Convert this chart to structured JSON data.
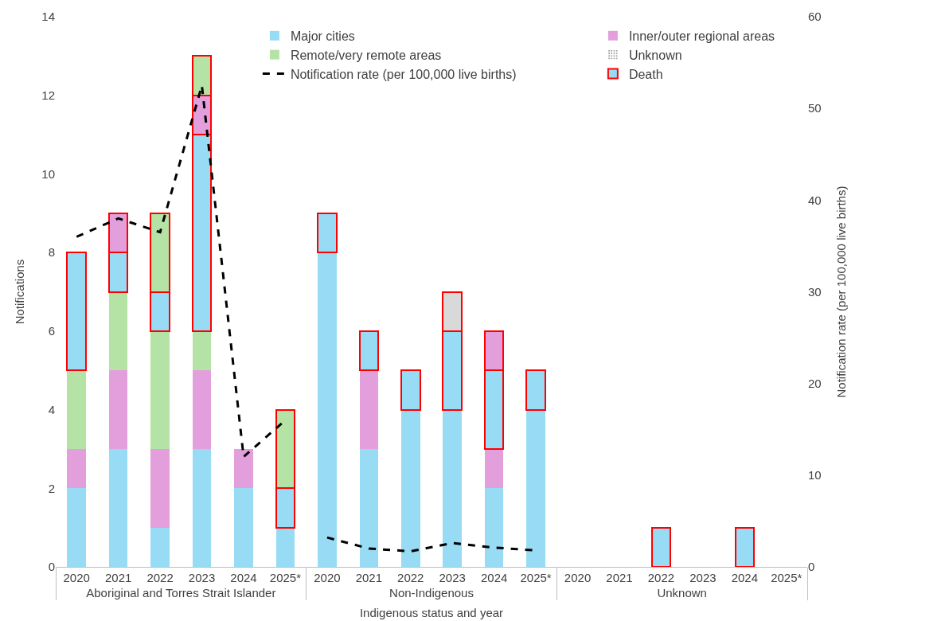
{
  "chart_data": {
    "type": "bar",
    "stacked": true,
    "xlabel": "Indigenous status and year",
    "ylabel": "Notifications",
    "y2label": "Notification rate (per 100,000 live births)",
    "categories": [
      "2020",
      "2021",
      "2022",
      "2023",
      "2024",
      "2025*",
      "2020",
      "2021",
      "2022",
      "2023",
      "2024",
      "2025*",
      "2020",
      "2021",
      "2022",
      "2023",
      "2024",
      "2025*"
    ],
    "annotations": [
      "Aboriginal and Torres Strait Islander",
      "Non-Indigenous",
      "Unknown"
    ],
    "series": [
      {
        "name": "Major cities",
        "color": "#97dbf5",
        "values": [
          2,
          3,
          1,
          3,
          2,
          1,
          8,
          3,
          4,
          4,
          2,
          4,
          0,
          0,
          0,
          0,
          0,
          0
        ]
      },
      {
        "name": "Inner/outer regional areas",
        "color": "#e39fdc",
        "values": [
          1,
          2,
          2,
          2,
          1,
          0,
          0,
          2,
          0,
          0,
          1,
          0,
          0,
          0,
          0,
          0,
          0,
          0
        ]
      },
      {
        "name": "Remote/very remote areas",
        "color": "#b4e3a5",
        "values": [
          2,
          2,
          3,
          1,
          0,
          0,
          0,
          0,
          0,
          0,
          0,
          0,
          0,
          0,
          0,
          0,
          0,
          0
        ]
      },
      {
        "name": "Unknown",
        "color": "#d9d9d9",
        "values": [
          0,
          0,
          0,
          0,
          0,
          0,
          0,
          0,
          0,
          0,
          0,
          0,
          0,
          0,
          0,
          0,
          0,
          0
        ]
      },
      {
        "name": "Notification rate (per 100,000 live births)",
        "type": "line",
        "axis": "y2",
        "color": "#000000",
        "line_style": "dashed",
        "values": [
          36,
          38,
          36.5,
          52.5,
          12,
          16,
          null,
          null,
          null,
          null,
          null,
          null,
          null,
          null,
          null,
          null,
          null,
          null
        ]
      },
      {
        "name": "Death",
        "color": "#ff0000",
        "colors": [
          "#97dbf5",
          "#97dbf5",
          "#97dbf5",
          "#97dbf5",
          "#97dbf5",
          "#97dbf5",
          "#97dbf5",
          "#97dbf5",
          "#97dbf5",
          "#97dbf5",
          "#97dbf5",
          "#97dbf5",
          "#97dbf5",
          "#97dbf5",
          "#97dbf5",
          "#97dbf5",
          "#97dbf5",
          "#97dbf5"
        ],
        "values": [
          3,
          1,
          1,
          5,
          null,
          1,
          1,
          1,
          1,
          2,
          2,
          1,
          null,
          null,
          1,
          null,
          1,
          null
        ]
      },
      {
        "color": "#ff0000",
        "colors": [
          "#e39fdc",
          "#e39fdc",
          "#e39fdc",
          "#e39fdc",
          "#e39fdc",
          "#e39fdc",
          "#e39fdc",
          "#e39fdc",
          "#e39fdc",
          "#e39fdc",
          "#e39fdc",
          "#e39fdc",
          "#e39fdc",
          "#e39fdc",
          "#e39fdc",
          "#e39fdc",
          "#e39fdc",
          "#e39fdc"
        ],
        "values": [
          null,
          1,
          null,
          1,
          null,
          null,
          null,
          null,
          null,
          null,
          1,
          null,
          null,
          null,
          null,
          null,
          null,
          null
        ]
      },
      {
        "color": "#ff0000",
        "colors": [
          "#b4e3a5",
          "#b4e3a5",
          "#b4e3a5",
          "#b4e3a5",
          "#b4e3a5",
          "#b4e3a5",
          "#b4e3a5",
          "#b4e3a5",
          "#b4e3a5",
          "#b4e3a5",
          "#b4e3a5",
          "#b4e3a5",
          "#b4e3a5",
          "#b4e3a5",
          "#b4e3a5",
          "#b4e3a5",
          "#b4e3a5",
          "#b4e3a5"
        ],
        "values": [
          null,
          null,
          2,
          1,
          null,
          2,
          null,
          null,
          null,
          null,
          null,
          null,
          null,
          null,
          null,
          null,
          null,
          null
        ]
      },
      {
        "color": "#ff0000",
        "colors": [
          "#d9d9d9",
          "#d9d9d9",
          "#d9d9d9",
          "#d9d9d9",
          "#d9d9d9",
          "#d9d9d9",
          "#d9d9d9",
          "#d9d9d9",
          "#d9d9d9",
          "#d9d9d9",
          "#d9d9d9",
          "#d9d9d9",
          "#d9d9d9",
          "#d9d9d9",
          "#d9d9d9",
          "#d9d9d9",
          "#d9d9d9",
          "#d9d9d9"
        ],
        "values": [
          null,
          null,
          null,
          null,
          null,
          null,
          null,
          null,
          null,
          1,
          null,
          null,
          null,
          null,
          null,
          null,
          null,
          null
        ]
      },
      {
        "type": "line",
        "axis": "y2",
        "color": "#000000",
        "line_style": "dashed",
        "values": [
          null,
          null,
          null,
          null,
          null,
          null,
          3.2,
          2,
          1.7,
          2.6,
          2.1,
          1.8,
          null,
          null,
          null,
          null,
          null,
          null
        ]
      }
    ],
    "ylim": [
      0,
      14
    ],
    "yticks": [
      0,
      2,
      4,
      6,
      8,
      10,
      12,
      14
    ],
    "y2lim": [
      0,
      60
    ],
    "y2ticks": [
      0,
      10,
      20,
      30,
      40,
      50,
      60
    ],
    "grid": false,
    "legend": "top"
  }
}
